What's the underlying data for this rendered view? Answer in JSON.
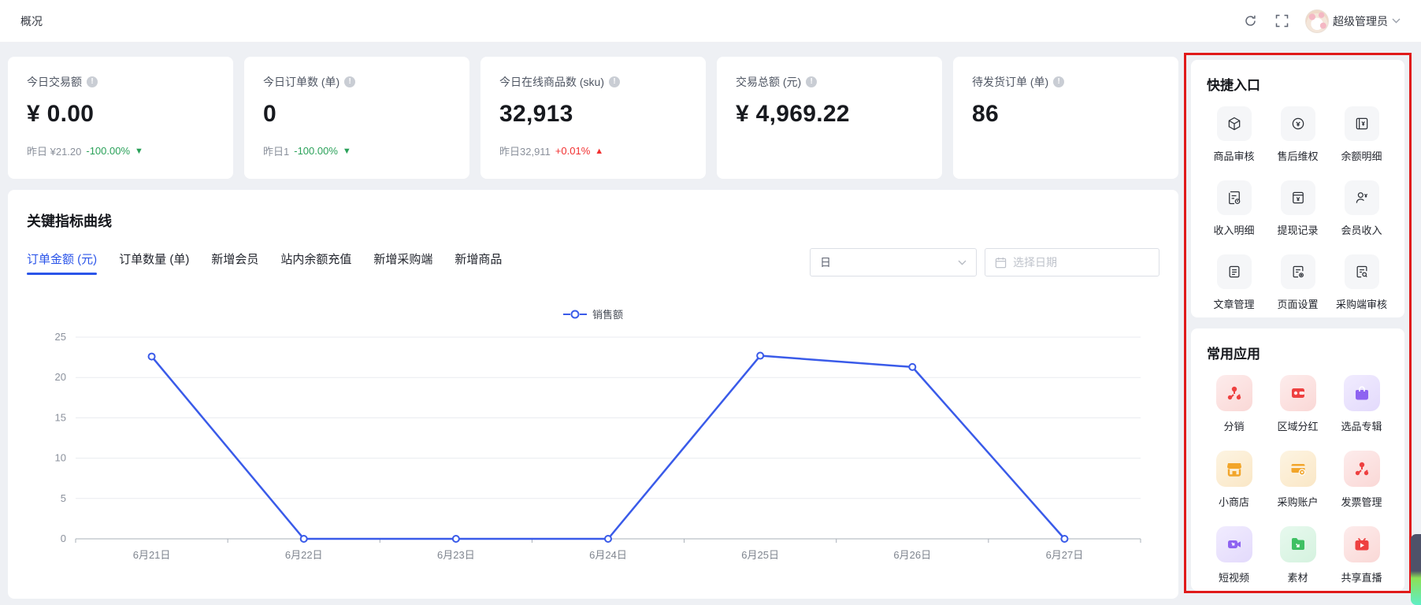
{
  "header": {
    "title": "概况",
    "user_name": "超级管理员"
  },
  "stats": [
    {
      "label": "今日交易额",
      "value": "¥ 0.00",
      "sub_prefix": "昨日 ¥21.20",
      "delta": "-100.00%",
      "arrow": "▼",
      "trend": "down"
    },
    {
      "label": "今日订单数 (单)",
      "value": "0",
      "sub_prefix": "昨日1",
      "delta": "-100.00%",
      "arrow": "▼",
      "trend": "down"
    },
    {
      "label": "今日在线商品数 (sku)",
      "value": "32,913",
      "sub_prefix": "昨日32,911",
      "delta": "+0.01%",
      "arrow": "▲",
      "trend": "up"
    },
    {
      "label": "交易总额 (元)",
      "value": "¥ 4,969.22",
      "sub_prefix": "",
      "delta": "",
      "arrow": "",
      "trend": ""
    },
    {
      "label": "待发货订单 (单)",
      "value": "86",
      "sub_prefix": "",
      "delta": "",
      "arrow": "",
      "trend": ""
    }
  ],
  "chart_panel": {
    "title": "关键指标曲线",
    "tabs": [
      {
        "label": "订单金额 (元)",
        "active": true
      },
      {
        "label": "订单数量 (单)",
        "active": false
      },
      {
        "label": "新增会员",
        "active": false
      },
      {
        "label": "站内余额充值",
        "active": false
      },
      {
        "label": "新增采购端",
        "active": false
      },
      {
        "label": "新增商品",
        "active": false
      }
    ],
    "period_select_value": "日",
    "date_placeholder": "选择日期"
  },
  "chart_data": {
    "type": "line",
    "title": "",
    "legend": [
      "销售额"
    ],
    "legend_position": "top-center",
    "x": [
      "6月21日",
      "6月22日",
      "6月23日",
      "6月24日",
      "6月25日",
      "6月26日",
      "6月27日"
    ],
    "series": [
      {
        "name": "销售额",
        "values": [
          22.6,
          0,
          0,
          0,
          22.7,
          21.3,
          0
        ]
      }
    ],
    "ylim": [
      0,
      25
    ],
    "yticks": [
      0,
      5,
      10,
      15,
      20,
      25
    ],
    "grid": "horizontal",
    "line_color": "#3a5be9"
  },
  "sidebar": {
    "quick_title": "快捷入口",
    "quick_items": [
      {
        "label": "商品审核",
        "icon": "package-icon"
      },
      {
        "label": "售后维权",
        "icon": "refund-cycle-icon"
      },
      {
        "label": "余额明细",
        "icon": "balance-book-icon"
      },
      {
        "label": "收入明细",
        "icon": "income-doc-icon"
      },
      {
        "label": "提现记录",
        "icon": "withdraw-box-icon"
      },
      {
        "label": "会员收入",
        "icon": "member-income-icon"
      },
      {
        "label": "文章管理",
        "icon": "article-doc-icon"
      },
      {
        "label": "页面设置",
        "icon": "page-gear-icon"
      },
      {
        "label": "采购端审核",
        "icon": "doc-search-icon"
      }
    ],
    "apps_title": "常用应用",
    "app_items": [
      {
        "label": "分销",
        "icon": "network-icon",
        "color": "red"
      },
      {
        "label": "区域分红",
        "icon": "wallet-icon",
        "color": "red"
      },
      {
        "label": "选品专辑",
        "icon": "bag-icon",
        "color": "purple"
      },
      {
        "label": "小商店",
        "icon": "shop-icon",
        "color": "orange"
      },
      {
        "label": "采购账户",
        "icon": "card-cart-icon",
        "color": "orange"
      },
      {
        "label": "发票管理",
        "icon": "network-icon",
        "color": "red"
      },
      {
        "label": "短视频",
        "icon": "video-icon",
        "color": "purple"
      },
      {
        "label": "素材",
        "icon": "folder-icon",
        "color": "green"
      },
      {
        "label": "共享直播",
        "icon": "live-tv-icon",
        "color": "red"
      }
    ]
  },
  "colors": {
    "accent_blue": "#2b55e9",
    "line_blue": "#3a5be9",
    "up_red": "#f23030",
    "down_green": "#2aa159",
    "annotation_red": "#e01a1a",
    "page_bg": "#eef0f4"
  }
}
